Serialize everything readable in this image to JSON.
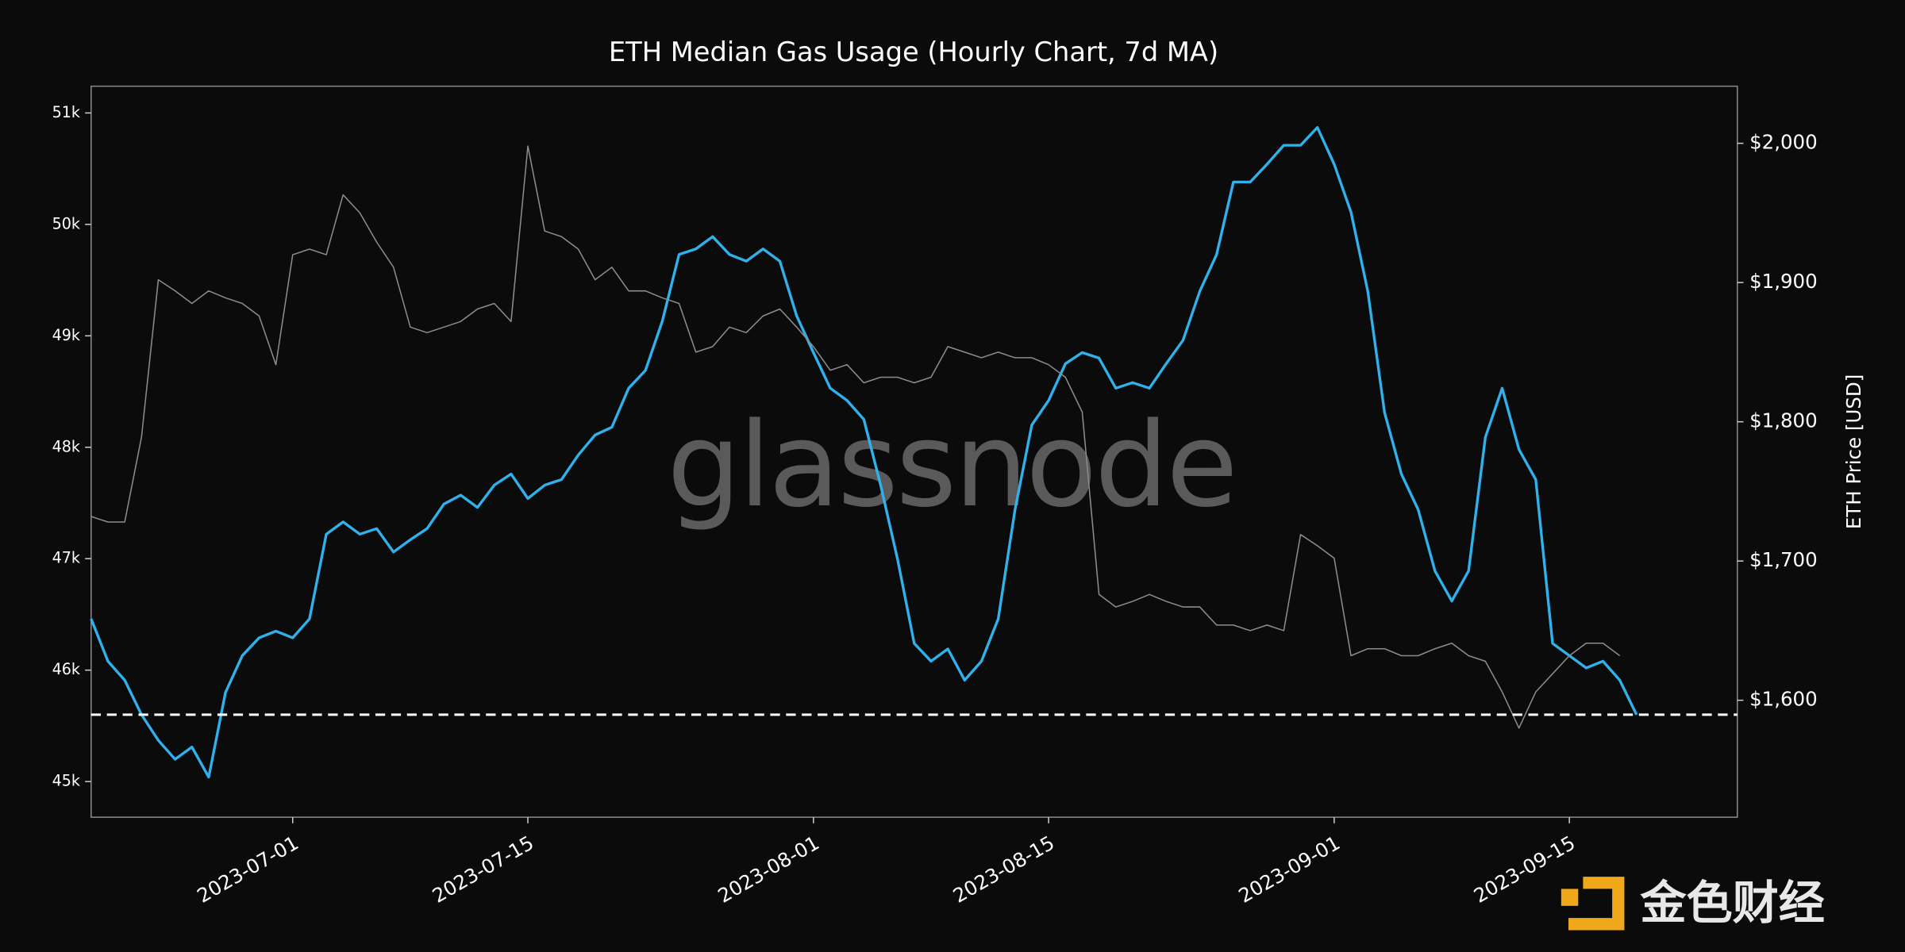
{
  "chart_data": {
    "type": "line",
    "title": "ETH Median Gas Usage (Hourly Chart, 7d MA)",
    "y2_label": "ETH Price [USD]",
    "watermark": "glassnode",
    "logo_text": "金色财经",
    "x": [
      "2023-06-19",
      "2023-06-20",
      "2023-06-21",
      "2023-06-22",
      "2023-06-23",
      "2023-06-24",
      "2023-06-25",
      "2023-06-26",
      "2023-06-27",
      "2023-06-28",
      "2023-06-29",
      "2023-06-30",
      "2023-07-01",
      "2023-07-02",
      "2023-07-03",
      "2023-07-04",
      "2023-07-05",
      "2023-07-06",
      "2023-07-07",
      "2023-07-08",
      "2023-07-09",
      "2023-07-10",
      "2023-07-11",
      "2023-07-12",
      "2023-07-13",
      "2023-07-14",
      "2023-07-15",
      "2023-07-16",
      "2023-07-17",
      "2023-07-18",
      "2023-07-19",
      "2023-07-20",
      "2023-07-21",
      "2023-07-22",
      "2023-07-23",
      "2023-07-24",
      "2023-07-25",
      "2023-07-26",
      "2023-07-27",
      "2023-07-28",
      "2023-07-29",
      "2023-07-30",
      "2023-07-31",
      "2023-08-01",
      "2023-08-02",
      "2023-08-03",
      "2023-08-04",
      "2023-08-05",
      "2023-08-06",
      "2023-08-07",
      "2023-08-08",
      "2023-08-09",
      "2023-08-10",
      "2023-08-11",
      "2023-08-12",
      "2023-08-13",
      "2023-08-14",
      "2023-08-15",
      "2023-08-16",
      "2023-08-17",
      "2023-08-18",
      "2023-08-19",
      "2023-08-20",
      "2023-08-21",
      "2023-08-22",
      "2023-08-23",
      "2023-08-24",
      "2023-08-25",
      "2023-08-26",
      "2023-08-27",
      "2023-08-28",
      "2023-08-29",
      "2023-08-30",
      "2023-08-31",
      "2023-09-01",
      "2023-09-02",
      "2023-09-03",
      "2023-09-04",
      "2023-09-05",
      "2023-09-06",
      "2023-09-07",
      "2023-09-08",
      "2023-09-09",
      "2023-09-10",
      "2023-09-11",
      "2023-09-12",
      "2023-09-13",
      "2023-09-14",
      "2023-09-15",
      "2023-09-16",
      "2023-09-17",
      "2023-09-18",
      "2023-09-19"
    ],
    "series": [
      {
        "color": "#2fb2ec",
        "axis": "y",
        "values": [
          46460,
          46080,
          45910,
          45600,
          45370,
          45200,
          45310,
          45040,
          45800,
          46130,
          46290,
          46350,
          46290,
          46460,
          47220,
          47330,
          47220,
          47270,
          47060,
          47170,
          47270,
          47490,
          47570,
          47460,
          47660,
          47760,
          47540,
          47660,
          47710,
          47930,
          48110,
          48180,
          48530,
          48690,
          49130,
          49730,
          49780,
          49890,
          49730,
          49670,
          49780,
          49670,
          49180,
          48850,
          48530,
          48420,
          48250,
          47660,
          47000,
          46240,
          46080,
          46190,
          45910,
          46080,
          46460,
          47440,
          48200,
          48420,
          48750,
          48850,
          48800,
          48530,
          48580,
          48530,
          48750,
          48960,
          49400,
          49730,
          50380,
          50380,
          50540,
          50710,
          50710,
          50870,
          50540,
          50110,
          49400,
          48310,
          47760,
          47440,
          46890,
          46620,
          46890,
          48090,
          48530,
          47980,
          47710,
          46240,
          46130,
          46020,
          46080,
          45910,
          45600
        ]
      },
      {
        "color": "#8c8c8c",
        "axis": "y2",
        "values": [
          1732,
          1728,
          1728,
          1789,
          1902,
          1894,
          1885,
          1894,
          1889,
          1885,
          1876,
          1841,
          1920,
          1924,
          1920,
          1963,
          1950,
          1929,
          1911,
          1868,
          1864,
          1868,
          1872,
          1881,
          1885,
          1872,
          1998,
          1937,
          1933,
          1924,
          1902,
          1911,
          1894,
          1894,
          1889,
          1885,
          1850,
          1854,
          1868,
          1864,
          1876,
          1881,
          1868,
          1854,
          1837,
          1841,
          1828,
          1832,
          1832,
          1828,
          1832,
          1854,
          1850,
          1846,
          1850,
          1846,
          1846,
          1841,
          1832,
          1807,
          1676,
          1667,
          1671,
          1676,
          1671,
          1667,
          1667,
          1654,
          1654,
          1650,
          1654,
          1650,
          1719,
          1711,
          1702,
          1632,
          1637,
          1637,
          1632,
          1632,
          1637,
          1641,
          1632,
          1628,
          1606,
          1580,
          1606,
          1619,
          1632,
          1641,
          1641,
          1632,
          null
        ]
      }
    ],
    "xlim": [
      "2023-06-19",
      "2023-09-25"
    ],
    "xticks": [
      "2023-07-01",
      "2023-07-15",
      "2023-08-01",
      "2023-08-15",
      "2023-09-01",
      "2023-09-15"
    ],
    "ylim": [
      44680,
      51240
    ],
    "yticks": [
      {
        "value": 45000,
        "label": "45k"
      },
      {
        "value": 46000,
        "label": "46k"
      },
      {
        "value": 47000,
        "label": "47k"
      },
      {
        "value": 48000,
        "label": "48k"
      },
      {
        "value": 49000,
        "label": "49k"
      },
      {
        "value": 50000,
        "label": "50k"
      },
      {
        "value": 51000,
        "label": "51k"
      }
    ],
    "y2lim": [
      1516,
      2041
    ],
    "y2ticks": [
      {
        "value": 1600,
        "label": "$1,600"
      },
      {
        "value": 1700,
        "label": "$1,700"
      },
      {
        "value": 1800,
        "label": "$1,800"
      },
      {
        "value": 1900,
        "label": "$1,900"
      },
      {
        "value": 2000,
        "label": "$2,000"
      }
    ],
    "hline": 45600,
    "grid": false
  }
}
